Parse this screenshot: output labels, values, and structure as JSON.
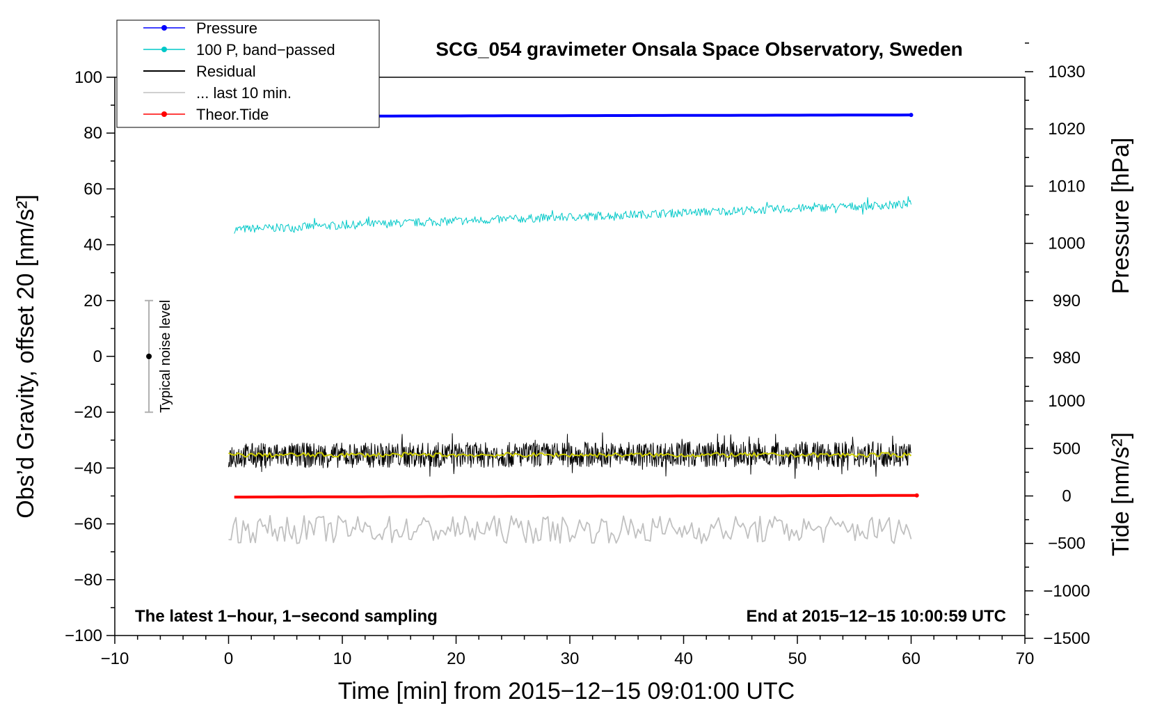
{
  "chart_data": {
    "type": "line",
    "title": "SCG_054 gravimeter Onsala Space Observatory, Sweden",
    "xlabel": "Time [min] from 2015−12−15 09:01:00 UTC",
    "ylabel_left": "Obs’d Gravity, offset 20 [nm/s²]",
    "ylabel_right_pressure": "Pressure [hPa]",
    "ylabel_right_tide": "Tide [nm/s²]",
    "xlim": [
      -10,
      70
    ],
    "ylim": [
      -100,
      100
    ],
    "x_ticks": [
      "−10",
      "0",
      "10",
      "20",
      "30",
      "40",
      "50",
      "60",
      "70"
    ],
    "y_ticks": [
      "100",
      "80",
      "60",
      "40",
      "20",
      "0",
      "−20",
      "−40",
      "−60",
      "−80",
      "−100"
    ],
    "pressure_ticks": [
      "1030",
      "1020",
      "1010",
      "1000",
      "990",
      "980"
    ],
    "tide_ticks": [
      "1000",
      "500",
      "0",
      "−500",
      "−1000",
      "−1500"
    ],
    "annotation_left": "The latest 1−hour, 1−second sampling",
    "annotation_right": "End at 2015−12−15 10:00:59 UTC",
    "noise_label": "Typical noise level",
    "legend_position": "top-left",
    "legend": [
      {
        "name": "Pressure",
        "color": "#0000ff",
        "marker": true
      },
      {
        "name": "100 P, band−passed",
        "color": "#00c8c8",
        "marker": true
      },
      {
        "name": "Residual",
        "color": "#000000",
        "marker": false
      },
      {
        "name": "... last 10 min.",
        "color": "#c0c0c0",
        "marker": false
      },
      {
        "name": "Theor.Tide",
        "color": "#ff0000",
        "marker": true
      }
    ],
    "series": [
      {
        "name": "Pressure",
        "color": "#0000ff",
        "x": [
          0.5,
          60
        ],
        "y": [
          86.0,
          86.5
        ]
      },
      {
        "name": "100 P, band−passed",
        "color": "#00c8c8",
        "x": [
          0.5,
          60
        ],
        "y": [
          45.5,
          54.5
        ],
        "noise_amplitude": 1.5
      },
      {
        "name": "Residual",
        "color": "#000000",
        "x": [
          0,
          60
        ],
        "y": [
          -35.5,
          -35.0
        ],
        "noise_amplitude": 4.5
      },
      {
        "name": "Residual (smoothed)",
        "color": "#cccc00",
        "x": [
          0,
          60
        ],
        "y": [
          -35.3,
          -35.3
        ]
      },
      {
        "name": "Theor.Tide",
        "color": "#ff0000",
        "x": [
          0.5,
          60.5
        ],
        "y": [
          -50.4,
          -49.8
        ]
      },
      {
        "name": "... last 10 min.",
        "color": "#c0c0c0",
        "x": [
          0,
          60
        ],
        "y": [
          -62,
          -62
        ],
        "noise_amplitude": 5
      }
    ],
    "noise_bar": {
      "x": -7,
      "y": 0,
      "ymin": -20,
      "ymax": 20
    }
  }
}
